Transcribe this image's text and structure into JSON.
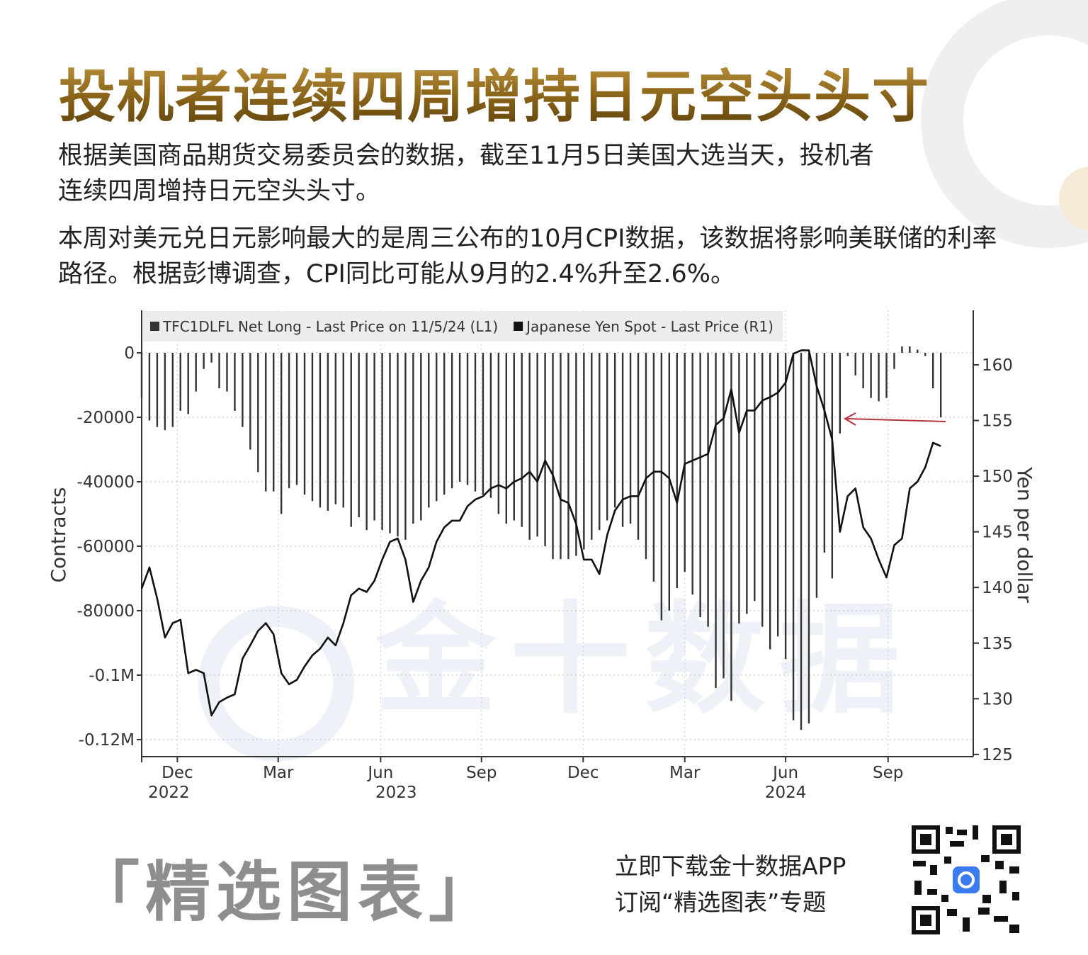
{
  "header": {
    "title": "投机者连续四周增持日元空头头寸"
  },
  "paragraphs": [
    "根据美国商品期货交易委员会的数据，截至11月5日美国大选当天，投机者连续四周增持日元空头头寸。",
    "本周对美元兑日元影响最大的是周三公布的10月CPI数据，该数据将影响美联储的利率路径。根据彭博调查，CPI同比可能从9月的2.4%升至2.6%。"
  ],
  "chart_data": {
    "type": "combo",
    "ylabel": "Contracts",
    "y2label": "Yen per dollar",
    "watermark": "金十数据",
    "ylim": [
      -125300,
      13200
    ],
    "yticks": [
      0,
      -20000,
      -40000,
      -60000,
      -80000,
      {
        "value": -100000,
        "label": "-0.1M"
      },
      {
        "value": -120000,
        "label": "-0.12M"
      }
    ],
    "y2lim": [
      124.8,
      164.9
    ],
    "y2ticks": [
      125,
      130,
      135,
      140,
      145,
      150,
      155,
      160
    ],
    "xlim": [
      0,
      107
    ],
    "xticks": [
      {
        "value": 4.6,
        "label": "Dec"
      },
      {
        "value": 17.6,
        "label": "Mar"
      },
      {
        "value": 30.8,
        "label": "Jun"
      },
      {
        "value": 43.8,
        "label": "Sep"
      },
      {
        "value": 56.9,
        "label": "Dec"
      },
      {
        "value": 70.0,
        "label": "Mar"
      },
      {
        "value": 83.0,
        "label": "Jun"
      },
      {
        "value": 96.2,
        "label": "Sep"
      }
    ],
    "year_ticks": [
      {
        "value": 3.5,
        "label": "2022"
      },
      {
        "value": 32.8,
        "label": "2023"
      },
      {
        "value": 83.0,
        "label": "2024"
      }
    ],
    "grid": true,
    "legend": "top",
    "series": [
      {
        "name": "Japanese Yen Spot - Last Price (R1)",
        "type": "line",
        "axis": "y2",
        "color": "#111111",
        "values": [
          139.9,
          141.8,
          139.0,
          135.5,
          136.8,
          137.1,
          132.3,
          132.6,
          132.3,
          128.5,
          129.7,
          130.1,
          130.4,
          133.6,
          134.8,
          136.1,
          136.8,
          135.8,
          132.3,
          131.3,
          131.7,
          132.9,
          133.9,
          134.5,
          135.5,
          134.8,
          136.8,
          139.3,
          139.9,
          139.6,
          140.6,
          142.5,
          144.1,
          144.4,
          142.5,
          138.7,
          140.6,
          141.8,
          144.1,
          145.4,
          146.0,
          146.0,
          147.3,
          147.9,
          148.2,
          148.9,
          149.2,
          148.9,
          149.5,
          149.8,
          150.4,
          149.5,
          151.4,
          150.1,
          147.9,
          147.6,
          145.7,
          142.5,
          142.5,
          141.2,
          144.7,
          146.9,
          147.9,
          148.2,
          148.2,
          149.8,
          150.4,
          150.4,
          149.8,
          147.6,
          151.1,
          151.4,
          151.7,
          152.0,
          154.6,
          155.2,
          157.8,
          153.9,
          155.9,
          155.9,
          156.8,
          157.1,
          157.5,
          158.4,
          161.0,
          161.3,
          161.3,
          158.1,
          155.9,
          153.3,
          145.0,
          148.2,
          148.9,
          145.4,
          144.4,
          142.5,
          140.9,
          143.8,
          144.4,
          148.9,
          149.5,
          150.8,
          153.0,
          152.7
        ]
      },
      {
        "name": "TFC1DLFL Net Long - Last Price on 11/5/24 (L1)",
        "type": "bar",
        "color": "#333333",
        "values": [
          -14000,
          -21000,
          -23000,
          -24000,
          -23000,
          -18000,
          -19000,
          -12000,
          -5000,
          -3000,
          -11000,
          -12000,
          -18000,
          -23000,
          -30000,
          -37000,
          -43000,
          -43000,
          -50000,
          -42000,
          -41000,
          -44000,
          -46000,
          -48000,
          -49000,
          -47000,
          -48000,
          -54000,
          -51000,
          -55000,
          -52000,
          -55000,
          -56000,
          -57000,
          -58000,
          -53000,
          -52000,
          -48000,
          -46000,
          -44000,
          -42000,
          -40000,
          -41000,
          -43000,
          -44000,
          -45000,
          -50000,
          -53000,
          -52000,
          -54000,
          -58000,
          -57000,
          -60000,
          -64000,
          -64000,
          -64000,
          -63000,
          -61000,
          -58000,
          -55000,
          -52000,
          -48000,
          -54000,
          -53000,
          -58000,
          -64000,
          -71000,
          -83000,
          -80000,
          -73000,
          -68000,
          -75000,
          -82000,
          -85000,
          -104000,
          -101000,
          -108000,
          -84000,
          -81000,
          -77000,
          -85000,
          -92000,
          -88000,
          -95000,
          -114000,
          -117000,
          -115000,
          -76000,
          -62000,
          -70000,
          -25000,
          -1000,
          -7000,
          -11000,
          -14000,
          -15000,
          -14000,
          -5000,
          2000,
          2000,
          1000,
          -1000,
          -11000,
          -20000
        ]
      }
    ]
  },
  "footer": {
    "brand": "「精选图表」",
    "cta": [
      "立即下载金十数据APP",
      "订阅“精选图表”专题"
    ]
  }
}
